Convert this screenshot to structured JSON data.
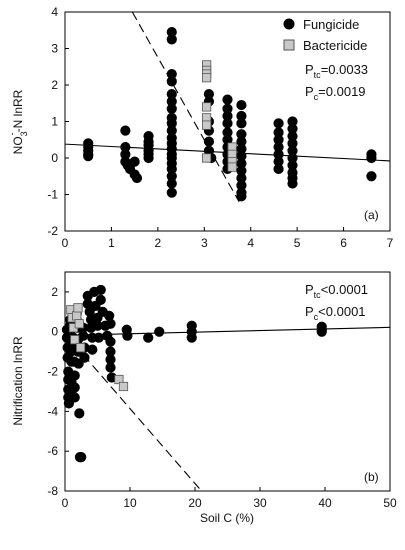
{
  "figure": {
    "shared_xlabel": "Soil C (%)"
  },
  "chart_data": [
    {
      "type": "scatter",
      "panel_label": "(a)",
      "xlabel": "",
      "ylabel_main": "NO",
      "ylabel_sub": "3",
      "ylabel_sup": "-",
      "ylabel_rest": "-N lnRR",
      "xlim": [
        0,
        7
      ],
      "ylim": [
        -2,
        4
      ],
      "xticks": [
        "0",
        "1",
        "2",
        "3",
        "4",
        "5",
        "6",
        "7"
      ],
      "yticks": [
        "-2",
        "-1",
        "0",
        "1",
        "2",
        "3",
        "4"
      ],
      "legend_placement": "top-right",
      "series": [
        {
          "name": "Fungicide",
          "marker": "circle",
          "color": "#000000",
          "points": [
            [
              0.5,
              0.4
            ],
            [
              0.5,
              0.3
            ],
            [
              0.5,
              0.2
            ],
            [
              0.5,
              0.1
            ],
            [
              0.5,
              0.05
            ],
            [
              1.3,
              0.75
            ],
            [
              1.3,
              0.3
            ],
            [
              1.3,
              0.1
            ],
            [
              1.3,
              -0.1
            ],
            [
              1.35,
              -0.2
            ],
            [
              1.4,
              -0.3
            ],
            [
              1.5,
              -0.45
            ],
            [
              1.55,
              -0.55
            ],
            [
              1.5,
              -0.1
            ],
            [
              1.8,
              0.6
            ],
            [
              1.8,
              0.45
            ],
            [
              1.8,
              0.35
            ],
            [
              1.8,
              0.2
            ],
            [
              1.8,
              0.1
            ],
            [
              1.8,
              0.0
            ],
            [
              2.3,
              3.45
            ],
            [
              2.3,
              3.25
            ],
            [
              2.3,
              2.3
            ],
            [
              2.3,
              2.1
            ],
            [
              2.3,
              1.75
            ],
            [
              2.3,
              1.55
            ],
            [
              2.3,
              1.35
            ],
            [
              2.3,
              1.1
            ],
            [
              2.3,
              0.95
            ],
            [
              2.3,
              0.75
            ],
            [
              2.3,
              0.55
            ],
            [
              2.3,
              0.4
            ],
            [
              2.3,
              0.25
            ],
            [
              2.3,
              0.1
            ],
            [
              2.3,
              0.0
            ],
            [
              2.3,
              -0.15
            ],
            [
              2.3,
              -0.3
            ],
            [
              2.3,
              -0.5
            ],
            [
              2.3,
              -0.7
            ],
            [
              2.3,
              -0.95
            ],
            [
              3.1,
              1.75
            ],
            [
              3.1,
              1.55
            ],
            [
              3.1,
              1.0
            ],
            [
              3.1,
              0.75
            ],
            [
              3.1,
              0.45
            ],
            [
              3.1,
              0.2
            ],
            [
              3.15,
              0.0
            ],
            [
              3.5,
              1.6
            ],
            [
              3.5,
              1.35
            ],
            [
              3.5,
              1.15
            ],
            [
              3.5,
              0.95
            ],
            [
              3.5,
              0.7
            ],
            [
              3.5,
              0.5
            ],
            [
              3.5,
              0.3
            ],
            [
              3.5,
              0.1
            ],
            [
              3.5,
              -0.1
            ],
            [
              3.5,
              -0.3
            ],
            [
              3.8,
              1.45
            ],
            [
              3.8,
              1.15
            ],
            [
              3.8,
              0.95
            ],
            [
              3.8,
              0.65
            ],
            [
              3.8,
              0.45
            ],
            [
              3.8,
              0.25
            ],
            [
              3.8,
              0.05
            ],
            [
              3.8,
              -0.15
            ],
            [
              3.8,
              -0.35
            ],
            [
              3.8,
              -0.55
            ],
            [
              3.8,
              -0.75
            ],
            [
              3.8,
              -0.95
            ],
            [
              3.8,
              -1.05
            ],
            [
              4.6,
              0.95
            ],
            [
              4.6,
              0.7
            ],
            [
              4.6,
              0.5
            ],
            [
              4.6,
              0.3
            ],
            [
              4.6,
              0.1
            ],
            [
              4.6,
              -0.1
            ],
            [
              4.6,
              -0.3
            ],
            [
              4.9,
              1.0
            ],
            [
              4.9,
              0.8
            ],
            [
              4.9,
              0.6
            ],
            [
              4.9,
              0.4
            ],
            [
              4.9,
              0.2
            ],
            [
              4.9,
              0.0
            ],
            [
              4.9,
              -0.2
            ],
            [
              4.9,
              -0.4
            ],
            [
              4.9,
              -0.55
            ],
            [
              4.9,
              -0.7
            ],
            [
              6.6,
              0.1
            ],
            [
              6.6,
              0.0
            ],
            [
              6.6,
              -0.5
            ]
          ]
        },
        {
          "name": "Bactericide",
          "marker": "square",
          "color": "#c8c8c8",
          "points": [
            [
              3.05,
              2.55
            ],
            [
              3.05,
              2.4
            ],
            [
              3.05,
              2.3
            ],
            [
              3.05,
              2.2
            ],
            [
              3.05,
              1.4
            ],
            [
              3.05,
              1.1
            ],
            [
              3.05,
              0.9
            ],
            [
              3.05,
              0.0
            ],
            [
              3.6,
              0.3
            ],
            [
              3.6,
              0.1
            ],
            [
              3.6,
              -0.1
            ],
            [
              3.6,
              -0.25
            ]
          ]
        }
      ],
      "lines": [
        {
          "style": "solid",
          "from": [
            0,
            0.38
          ],
          "to": [
            7,
            -0.08
          ]
        },
        {
          "style": "dashed",
          "from": [
            1.45,
            4.0
          ],
          "to": [
            3.75,
            -1.2
          ]
        }
      ],
      "annotations": [
        {
          "base": "P",
          "sub": "tc",
          "text": "=0.0033"
        },
        {
          "base": "P",
          "sub": "c",
          "text": "=0.0019"
        }
      ]
    },
    {
      "type": "scatter",
      "panel_label": "(b)",
      "xlabel": "Soil C (%)",
      "ylabel": "Nitrification lnRR",
      "xlim": [
        0,
        50
      ],
      "ylim": [
        -8,
        3
      ],
      "xticks": [
        "0",
        "10",
        "20",
        "30",
        "40",
        "50"
      ],
      "yticks": [
        "-8",
        "-6",
        "-4",
        "-2",
        "0",
        "2"
      ],
      "series": [
        {
          "name": "Fungicide",
          "marker": "circle",
          "color": "#000000",
          "points": [
            [
              0.3,
              0.1
            ],
            [
              0.3,
              -0.3
            ],
            [
              0.4,
              -0.8
            ],
            [
              0.4,
              -1.3
            ],
            [
              0.5,
              -2.0
            ],
            [
              0.5,
              -2.4
            ],
            [
              0.5,
              -2.9
            ],
            [
              0.5,
              -3.3
            ],
            [
              0.6,
              -3.6
            ],
            [
              0.8,
              0.6
            ],
            [
              0.8,
              0.3
            ],
            [
              0.8,
              0.0
            ],
            [
              0.9,
              -0.5
            ],
            [
              0.9,
              -1.0
            ],
            [
              1.0,
              -1.5
            ],
            [
              1.0,
              -2.5
            ],
            [
              1.0,
              -3.0
            ],
            [
              1.2,
              1.0
            ],
            [
              1.2,
              0.5
            ],
            [
              1.3,
              0.2
            ],
            [
              1.3,
              -0.3
            ],
            [
              1.4,
              -0.8
            ],
            [
              1.4,
              -1.5
            ],
            [
              1.5,
              -2.2
            ],
            [
              1.5,
              -2.8
            ],
            [
              1.5,
              -3.3
            ],
            [
              1.8,
              0.9
            ],
            [
              1.8,
              0.6
            ],
            [
              1.9,
              0.2
            ],
            [
              2.0,
              -0.4
            ],
            [
              2.0,
              -1.0
            ],
            [
              2.1,
              -1.6
            ],
            [
              2.2,
              -4.1
            ],
            [
              2.3,
              -6.3
            ],
            [
              2.5,
              -6.3
            ],
            [
              2.8,
              0.2
            ],
            [
              2.8,
              -0.2
            ],
            [
              3.0,
              -0.8
            ],
            [
              3.0,
              -1.3
            ],
            [
              3.5,
              1.8
            ],
            [
              3.5,
              1.4
            ],
            [
              3.8,
              1.0
            ],
            [
              4.0,
              0.6
            ],
            [
              4.0,
              0.2
            ],
            [
              4.2,
              -0.3
            ],
            [
              4.2,
              -0.9
            ],
            [
              4.5,
              2.0
            ],
            [
              4.7,
              1.3
            ],
            [
              5.0,
              0.7
            ],
            [
              5.0,
              0.3
            ],
            [
              5.2,
              -0.3
            ],
            [
              5.5,
              2.1
            ],
            [
              5.5,
              1.6
            ],
            [
              5.8,
              1.0
            ],
            [
              6.2,
              0.3
            ],
            [
              6.5,
              -0.2
            ],
            [
              6.8,
              0.8
            ],
            [
              7.0,
              0.4
            ],
            [
              7.0,
              -0.5
            ],
            [
              7.0,
              -1.0
            ],
            [
              7.0,
              -1.4
            ],
            [
              7.0,
              -1.8
            ],
            [
              7.2,
              -2.3
            ],
            [
              9.5,
              0.1
            ],
            [
              9.6,
              -0.2
            ],
            [
              12.8,
              -0.3
            ],
            [
              14.5,
              0.0
            ],
            [
              19.5,
              0.3
            ],
            [
              19.5,
              0.0
            ],
            [
              19.5,
              -0.3
            ],
            [
              39.5,
              0.25
            ],
            [
              39.5,
              0.1
            ],
            [
              39.5,
              0.0
            ]
          ]
        },
        {
          "name": "Bactericide",
          "marker": "square",
          "color": "#c8c8c8",
          "points": [
            [
              0.9,
              1.1
            ],
            [
              1.1,
              0.7
            ],
            [
              1.3,
              0.2
            ],
            [
              1.5,
              -0.4
            ],
            [
              1.8,
              0.8
            ],
            [
              2.0,
              1.2
            ],
            [
              2.2,
              0.4
            ],
            [
              2.4,
              -0.8
            ],
            [
              8.3,
              -2.4
            ],
            [
              9.0,
              -2.75
            ]
          ]
        }
      ],
      "lines": [
        {
          "style": "solid",
          "from": [
            0,
            -0.18
          ],
          "to": [
            50,
            0.22
          ]
        },
        {
          "style": "dashed",
          "from": [
            0,
            -0.1
          ],
          "to": [
            21,
            -8.0
          ]
        }
      ],
      "annotations": [
        {
          "base": "P",
          "sub": "tc",
          "text": "<0.0001"
        },
        {
          "base": "P",
          "sub": "c",
          "text": "<0.0001"
        }
      ]
    }
  ]
}
